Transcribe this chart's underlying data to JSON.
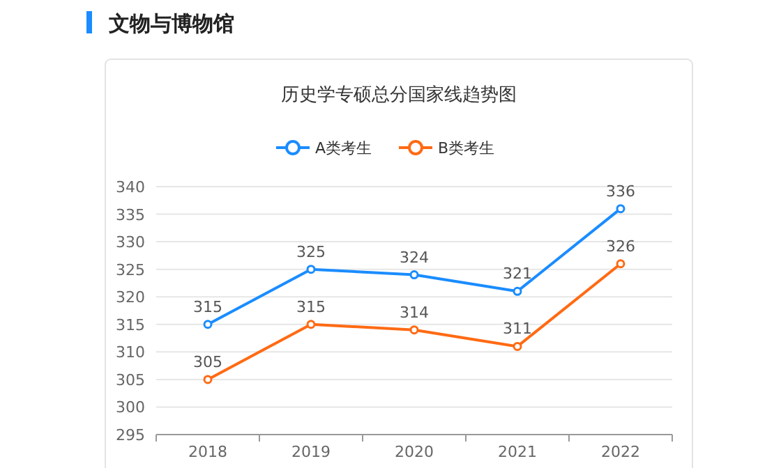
{
  "chart_data": {
    "type": "line",
    "title": "历史学专硕总分国家线趋势图",
    "annotations": [
      "文物与博物馆"
    ],
    "categories": [
      "2018",
      "2019",
      "2020",
      "2021",
      "2022"
    ],
    "series": [
      {
        "name": "A类考生",
        "color": "#1a8cff",
        "values": [
          315,
          325,
          324,
          321,
          336
        ]
      },
      {
        "name": "B类考生",
        "color": "#ff6a13",
        "values": [
          305,
          315,
          314,
          311,
          326
        ]
      }
    ],
    "ylim": [
      295,
      340
    ],
    "yticks": [
      295,
      300,
      305,
      310,
      315,
      320,
      325,
      330,
      335,
      340
    ],
    "grid": "y",
    "legend": "top",
    "marker": "circle",
    "line_style": "solid",
    "data_labels": true
  }
}
